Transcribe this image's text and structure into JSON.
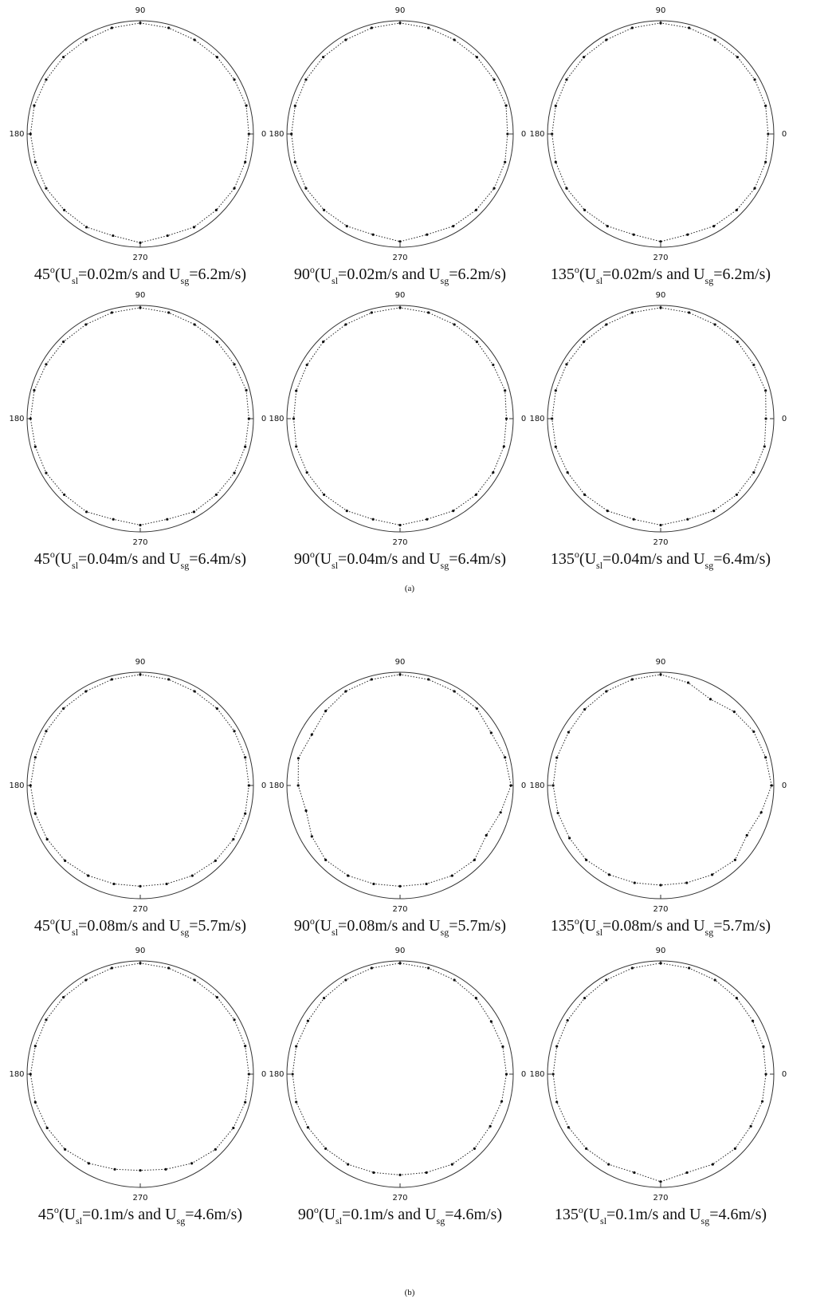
{
  "chart_data": [
    {
      "type": "polar",
      "caption": [
        "45",
        "o",
        "(U",
        "sl",
        "=0.02m/s and U",
        "sg",
        "=6.2m/s)"
      ],
      "thetaticks": [
        0,
        90,
        180,
        270
      ],
      "rlim": [
        0,
        1
      ],
      "theta": [
        0,
        15,
        30,
        45,
        60,
        75,
        90,
        105,
        120,
        135,
        150,
        165,
        180,
        195,
        210,
        225,
        240,
        255,
        270,
        285,
        300,
        315,
        330,
        345
      ],
      "values": [
        0.96,
        0.97,
        0.96,
        0.96,
        0.96,
        0.97,
        0.98,
        0.97,
        0.96,
        0.96,
        0.96,
        0.97,
        0.97,
        0.96,
        0.96,
        0.95,
        0.95,
        0.93,
        0.96,
        0.93,
        0.95,
        0.95,
        0.96,
        0.96
      ]
    },
    {
      "type": "polar",
      "caption": [
        "90",
        "o",
        "(U",
        "sl",
        "=0.02m/s and U",
        "sg",
        "=6.2m/s)"
      ],
      "thetaticks": [
        0,
        90,
        180,
        270
      ],
      "rlim": [
        0,
        1
      ],
      "theta": [
        0,
        15,
        30,
        45,
        60,
        75,
        90,
        105,
        120,
        135,
        150,
        165,
        180,
        195,
        210,
        225,
        240,
        255,
        270,
        285,
        300,
        315,
        330,
        345
      ],
      "values": [
        0.95,
        0.97,
        0.96,
        0.96,
        0.96,
        0.97,
        0.98,
        0.97,
        0.96,
        0.96,
        0.96,
        0.96,
        0.96,
        0.96,
        0.96,
        0.95,
        0.94,
        0.92,
        0.95,
        0.92,
        0.94,
        0.95,
        0.96,
        0.96
      ]
    },
    {
      "type": "polar",
      "caption": [
        "135",
        "o",
        "(U",
        "sl",
        "=0.02m/s and U",
        "sg",
        "=6.2m/s)"
      ],
      "thetaticks": [
        0,
        90,
        180,
        270
      ],
      "rlim": [
        0,
        1
      ],
      "theta": [
        0,
        15,
        30,
        45,
        60,
        75,
        90,
        105,
        120,
        135,
        150,
        165,
        180,
        195,
        210,
        225,
        240,
        255,
        270,
        285,
        300,
        315,
        330,
        345
      ],
      "values": [
        0.95,
        0.96,
        0.96,
        0.96,
        0.96,
        0.97,
        0.98,
        0.97,
        0.96,
        0.96,
        0.96,
        0.96,
        0.96,
        0.96,
        0.96,
        0.95,
        0.94,
        0.92,
        0.95,
        0.92,
        0.94,
        0.95,
        0.96,
        0.96
      ]
    },
    {
      "type": "polar",
      "caption": [
        "45",
        "o",
        "(U",
        "sl",
        "=0.04m/s and U",
        "sg",
        "=6.4m/s)"
      ],
      "thetaticks": [
        0,
        90,
        180,
        270
      ],
      "rlim": [
        0,
        1
      ],
      "theta": [
        0,
        15,
        30,
        45,
        60,
        75,
        90,
        105,
        120,
        135,
        150,
        165,
        180,
        195,
        210,
        225,
        240,
        255,
        270,
        285,
        300,
        315,
        330,
        345
      ],
      "values": [
        0.96,
        0.97,
        0.96,
        0.96,
        0.96,
        0.97,
        0.98,
        0.97,
        0.96,
        0.96,
        0.96,
        0.97,
        0.97,
        0.96,
        0.96,
        0.95,
        0.95,
        0.92,
        0.94,
        0.92,
        0.95,
        0.95,
        0.96,
        0.96
      ]
    },
    {
      "type": "polar",
      "caption": [
        "90",
        "o",
        "(U",
        "sl",
        "=0.04m/s and U",
        "sg",
        "=6.4m/s)"
      ],
      "thetaticks": [
        0,
        90,
        180,
        270
      ],
      "rlim": [
        0,
        1
      ],
      "theta": [
        0,
        15,
        30,
        45,
        60,
        75,
        90,
        105,
        120,
        135,
        150,
        165,
        180,
        195,
        210,
        225,
        240,
        255,
        270,
        285,
        300,
        315,
        330,
        345
      ],
      "values": [
        0.94,
        0.96,
        0.95,
        0.96,
        0.96,
        0.97,
        0.98,
        0.97,
        0.96,
        0.96,
        0.95,
        0.95,
        0.94,
        0.95,
        0.95,
        0.95,
        0.94,
        0.92,
        0.94,
        0.92,
        0.94,
        0.95,
        0.95,
        0.95
      ]
    },
    {
      "type": "polar",
      "caption": [
        "135",
        "o",
        "(U",
        "sl",
        "=0.04m/s and U",
        "sg",
        "=6.4m/s)"
      ],
      "thetaticks": [
        0,
        90,
        180,
        270
      ],
      "rlim": [
        0,
        1
      ],
      "theta": [
        0,
        15,
        30,
        45,
        60,
        75,
        90,
        105,
        120,
        135,
        150,
        165,
        180,
        195,
        210,
        225,
        240,
        255,
        270,
        285,
        300,
        315,
        330,
        345
      ],
      "values": [
        0.93,
        0.96,
        0.95,
        0.96,
        0.96,
        0.97,
        0.98,
        0.97,
        0.96,
        0.96,
        0.96,
        0.96,
        0.96,
        0.96,
        0.95,
        0.95,
        0.94,
        0.92,
        0.94,
        0.92,
        0.94,
        0.95,
        0.95,
        0.95
      ]
    },
    {
      "type": "polar",
      "caption": [
        "45",
        "o",
        "(U",
        "sl",
        "=0.08m/s and U",
        "sg",
        "=5.7m/s)"
      ],
      "thetaticks": [
        0,
        90,
        180,
        270
      ],
      "rlim": [
        0,
        1
      ],
      "theta": [
        0,
        15,
        30,
        45,
        60,
        75,
        90,
        105,
        120,
        135,
        150,
        165,
        180,
        195,
        210,
        225,
        240,
        255,
        270,
        285,
        300,
        315,
        330,
        345
      ],
      "values": [
        0.96,
        0.96,
        0.96,
        0.96,
        0.96,
        0.97,
        0.98,
        0.97,
        0.96,
        0.96,
        0.96,
        0.96,
        0.97,
        0.96,
        0.95,
        0.94,
        0.92,
        0.9,
        0.89,
        0.9,
        0.92,
        0.94,
        0.95,
        0.96
      ]
    },
    {
      "type": "polar",
      "caption": [
        "90",
        "o",
        "(U",
        "sl",
        "=0.08m/s and U",
        "sg",
        "=5.7m/s)"
      ],
      "thetaticks": [
        0,
        90,
        180,
        270
      ],
      "rlim": [
        0,
        1
      ],
      "theta": [
        0,
        15,
        30,
        45,
        60,
        75,
        90,
        105,
        120,
        135,
        150,
        165,
        180,
        195,
        210,
        225,
        240,
        255,
        270,
        285,
        300,
        315,
        330,
        345
      ],
      "values": [
        0.98,
        0.96,
        0.93,
        0.96,
        0.96,
        0.97,
        0.98,
        0.97,
        0.96,
        0.93,
        0.9,
        0.93,
        0.9,
        0.86,
        0.9,
        0.93,
        0.92,
        0.9,
        0.89,
        0.9,
        0.92,
        0.93,
        0.88,
        0.92
      ]
    },
    {
      "type": "polar",
      "caption": [
        "135",
        "o",
        "(U",
        "sl",
        "=0.08m/s and U",
        "sg",
        "=5.7m/s)"
      ],
      "thetaticks": [
        0,
        90,
        180,
        270
      ],
      "rlim": [
        0,
        1
      ],
      "theta": [
        0,
        15,
        30,
        45,
        60,
        75,
        90,
        105,
        120,
        135,
        150,
        165,
        180,
        195,
        210,
        225,
        240,
        255,
        270,
        285,
        300,
        315,
        330,
        345
      ],
      "values": [
        0.98,
        0.96,
        0.95,
        0.92,
        0.88,
        0.94,
        0.98,
        0.97,
        0.96,
        0.95,
        0.94,
        0.95,
        0.95,
        0.94,
        0.93,
        0.93,
        0.91,
        0.89,
        0.88,
        0.89,
        0.91,
        0.93,
        0.88,
        0.92
      ]
    },
    {
      "type": "polar",
      "caption": [
        "45",
        "o",
        "(U",
        "sl",
        "=0.1m/s and U",
        "sg",
        "=4.6m/s)"
      ],
      "thetaticks": [
        0,
        90,
        180,
        270
      ],
      "rlim": [
        0,
        1
      ],
      "theta": [
        0,
        15,
        30,
        45,
        60,
        75,
        90,
        105,
        120,
        135,
        150,
        165,
        180,
        195,
        210,
        225,
        240,
        255,
        270,
        285,
        300,
        315,
        330,
        345
      ],
      "values": [
        0.96,
        0.96,
        0.96,
        0.96,
        0.96,
        0.97,
        0.98,
        0.97,
        0.96,
        0.96,
        0.96,
        0.96,
        0.97,
        0.96,
        0.95,
        0.94,
        0.91,
        0.87,
        0.85,
        0.87,
        0.91,
        0.94,
        0.95,
        0.96
      ]
    },
    {
      "type": "polar",
      "caption": [
        "90",
        "o",
        "(U",
        "sl",
        "=0.1m/s and U",
        "sg",
        "=4.6m/s)"
      ],
      "thetaticks": [
        0,
        90,
        180,
        270
      ],
      "rlim": [
        0,
        1
      ],
      "theta": [
        0,
        15,
        30,
        45,
        60,
        75,
        90,
        105,
        120,
        135,
        150,
        165,
        180,
        195,
        210,
        225,
        240,
        255,
        270,
        285,
        300,
        315,
        330,
        345
      ],
      "values": [
        0.94,
        0.94,
        0.93,
        0.95,
        0.96,
        0.97,
        0.98,
        0.97,
        0.96,
        0.95,
        0.94,
        0.95,
        0.95,
        0.95,
        0.94,
        0.93,
        0.92,
        0.9,
        0.89,
        0.9,
        0.92,
        0.93,
        0.92,
        0.93
      ]
    },
    {
      "type": "polar",
      "caption": [
        "135",
        "o",
        "(U",
        "sl",
        "=0.1m/s and U",
        "sg",
        "=4.6m/s)"
      ],
      "thetaticks": [
        0,
        90,
        180,
        270
      ],
      "rlim": [
        0,
        1
      ],
      "theta": [
        0,
        15,
        30,
        45,
        60,
        75,
        90,
        105,
        120,
        135,
        150,
        165,
        180,
        195,
        210,
        225,
        240,
        255,
        270,
        285,
        300,
        315,
        330,
        345
      ],
      "values": [
        0.93,
        0.94,
        0.94,
        0.95,
        0.96,
        0.97,
        0.98,
        0.97,
        0.96,
        0.95,
        0.95,
        0.95,
        0.95,
        0.95,
        0.94,
        0.93,
        0.92,
        0.9,
        0.95,
        0.9,
        0.92,
        0.93,
        0.92,
        0.93
      ]
    }
  ],
  "panel_labels": [
    "(a)",
    "(b)"
  ]
}
